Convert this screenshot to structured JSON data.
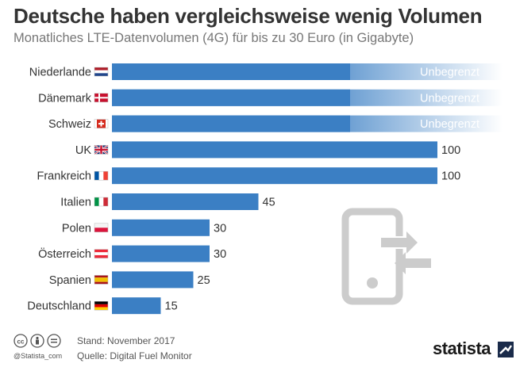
{
  "header": {
    "title": "Deutsche haben vergleichsweise wenig Volumen",
    "subtitle": "Monatliches LTE-Datenvolumen (4G) für bis zu 30 Euro (in Gigabyte)"
  },
  "chart_data": {
    "type": "bar",
    "orientation": "horizontal",
    "categories": [
      "Niederlande",
      "Dänemark",
      "Schweiz",
      "UK",
      "Frankreich",
      "Italien",
      "Polen",
      "Österreich",
      "Spanien",
      "Deutschland"
    ],
    "values": [
      null,
      null,
      null,
      100,
      100,
      45,
      30,
      30,
      25,
      15
    ],
    "value_labels": [
      "Unbegrenzt",
      "Unbegrenzt",
      "Unbegrenzt",
      "100",
      "100",
      "45",
      "30",
      "30",
      "25",
      "15"
    ],
    "unlimited_label": "Unbegrenzt",
    "xlim": [
      0,
      100
    ],
    "bar_color": "#3b7fc4",
    "grid": false,
    "flags": [
      "flag-nl",
      "flag-dk",
      "flag-ch",
      "flag-uk",
      "flag-fr",
      "flag-it",
      "flag-pl",
      "flag-at",
      "flag-es",
      "flag-de"
    ]
  },
  "footer": {
    "handle": "@Statista_com",
    "stand": "Stand: November 2017",
    "quelle": "Quelle: Digital Fuel Monitor",
    "logo": "statista"
  },
  "colors": {
    "bar": "#3b7fc4",
    "title": "#333333",
    "subtitle": "#777777",
    "icon_gray": "#cccccc"
  }
}
